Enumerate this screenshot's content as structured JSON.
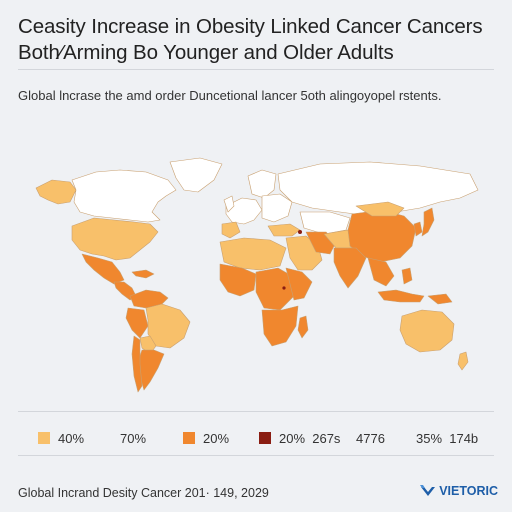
{
  "title": {
    "line1": "Ceasity Increase in Obesity Linked Cancer Cancers",
    "line2": "Both⁄Arming Bo Younger and Older Adults"
  },
  "subtitle": "Global lncrase the amd order Duncetional lancer 5oth alingoyopel rstents.",
  "legend": [
    {
      "label": "40%",
      "color": "#f8c06a"
    },
    {
      "label": "70%",
      "color": null
    },
    {
      "label": "20%",
      "color": "#f0872e"
    },
    {
      "label": "20%  267s",
      "color": "#8a1d12"
    },
    {
      "label": "4776",
      "color": null
    },
    {
      "label": "35%  174b",
      "color": null
    }
  ],
  "footer": "Global Incrand Desity Cancer 201· 149, 2029",
  "brand": "VIETORIC",
  "colors": {
    "land_none": "#ffffff",
    "light_orange": "#f8c06a",
    "mid_orange": "#f0872e",
    "dark_red": "#8a1d12",
    "brand_blue": "#1e5ea8"
  }
}
